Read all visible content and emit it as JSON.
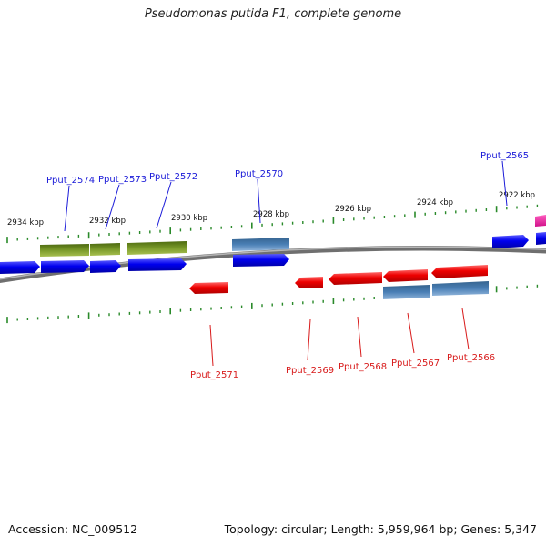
{
  "title": "Pseudomonas putida F1, complete genome",
  "footer": {
    "accession": "Accession: NC_009512",
    "summary": "Topology: circular; Length: 5,959,964 bp; Genes: 5,347"
  },
  "colors": {
    "plus_label": "#1a1ad8",
    "minus_label": "#d81a1a",
    "cds_blue": "#0000ee",
    "cds_red": "#ee0000",
    "gene_olive": "#6b8a1f",
    "gene_steel": "#4a7fb5",
    "gene_pink": "#ee1aa0",
    "backbone": "#8a8a8a",
    "tick": "#2a8a2a"
  },
  "scale_labels": [
    "2934 kbp",
    "2932 kbp",
    "2930 kbp",
    "2928 kbp",
    "2926 kbp",
    "2924 kbp",
    "2922 kbp"
  ],
  "plus_genes": [
    "Pput_2574",
    "Pput_2573",
    "Pput_2572",
    "Pput_2570",
    "Pput_2565"
  ],
  "minus_genes": [
    "Pput_2571",
    "Pput_2569",
    "Pput_2568",
    "Pput_2567",
    "Pput_2566"
  ]
}
